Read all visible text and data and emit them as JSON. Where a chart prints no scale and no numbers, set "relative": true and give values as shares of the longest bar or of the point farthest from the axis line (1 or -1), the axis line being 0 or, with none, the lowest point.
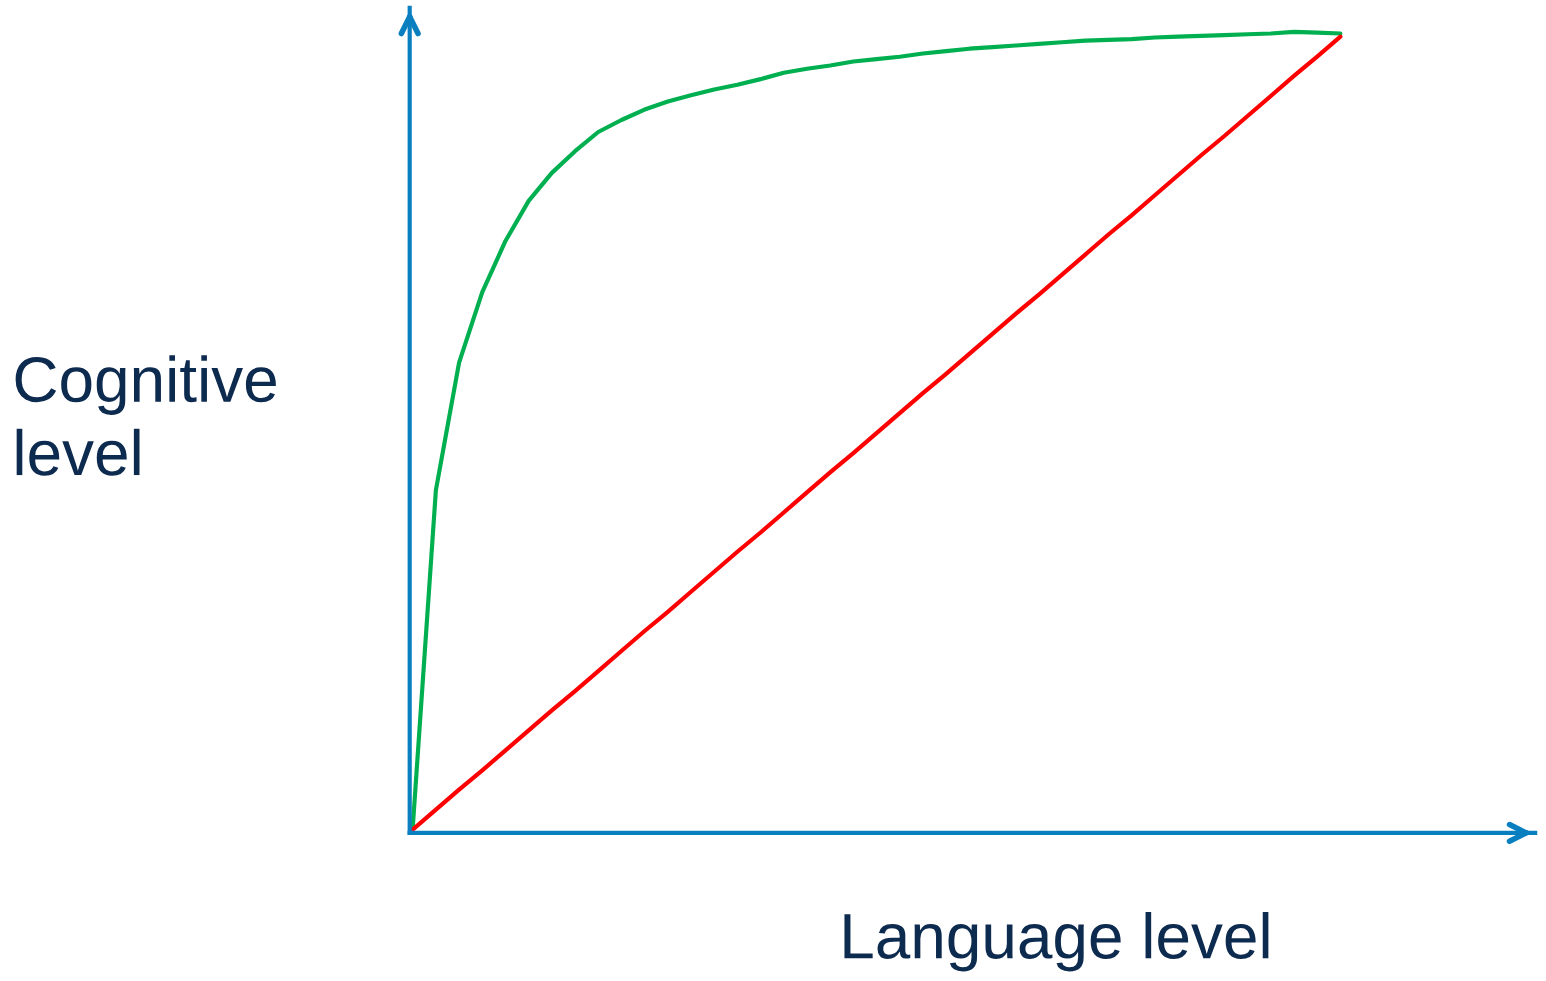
{
  "chart_data": {
    "type": "line",
    "relative": true,
    "xlabel": "Language level",
    "ylabel": "Cognitive\nlevel",
    "grid": false,
    "legend": false,
    "marker": "none",
    "line_style": "solid",
    "categories": [
      null,
      null,
      null,
      null,
      null,
      null,
      null,
      null,
      null,
      null,
      null,
      null,
      null,
      null,
      null,
      null,
      null,
      null,
      null,
      null,
      null,
      null,
      null,
      null,
      null,
      null,
      null,
      null,
      null,
      null,
      null,
      null,
      null,
      null,
      null,
      null,
      null,
      null,
      null,
      null,
      null
    ],
    "series": [
      {
        "color": "#00b050",
        "values": [
          0.006,
          0.428,
          0.587,
          0.675,
          0.739,
          0.789,
          0.824,
          0.851,
          0.875,
          0.89,
          0.903,
          0.913,
          0.921,
          0.928,
          0.934,
          0.941,
          0.949,
          0.954,
          0.958,
          0.963,
          0.966,
          0.969,
          0.973,
          0.976,
          0.979,
          0.981,
          0.983,
          0.985,
          0.987,
          0.989,
          0.99,
          0.991,
          0.993,
          0.994,
          0.995,
          0.996,
          0.997,
          0.998,
          1.0,
          0.999,
          0.998
        ]
      },
      {
        "color": "#ff0000",
        "values": [
          0.004,
          0.029,
          0.054,
          0.078,
          0.103,
          0.128,
          0.153,
          0.177,
          0.202,
          0.227,
          0.252,
          0.276,
          0.301,
          0.326,
          0.351,
          0.375,
          0.4,
          0.425,
          0.45,
          0.474,
          0.499,
          0.524,
          0.549,
          0.573,
          0.598,
          0.623,
          0.648,
          0.672,
          0.697,
          0.722,
          0.747,
          0.771,
          0.796,
          0.821,
          0.846,
          0.87,
          0.895,
          0.92,
          0.945,
          0.969,
          0.994
        ]
      }
    ]
  }
}
